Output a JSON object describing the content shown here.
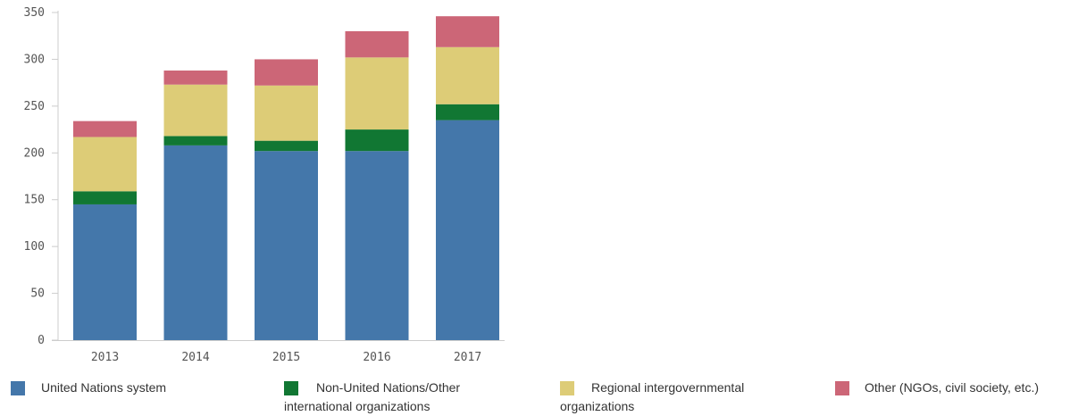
{
  "chart_data": {
    "type": "bar",
    "stacked": true,
    "title": "",
    "xlabel": "",
    "ylabel": "",
    "categories": [
      "2013",
      "2014",
      "2015",
      "2016",
      "2017"
    ],
    "ylim": [
      0,
      350
    ],
    "yticks": [
      "0",
      "50",
      "100",
      "150",
      "200",
      "250",
      "300",
      "350"
    ],
    "grid": false,
    "legend_position": "bottom",
    "series": [
      {
        "name": "United Nations system",
        "color": "#4477aa",
        "values": [
          145,
          208,
          202,
          202,
          235
        ]
      },
      {
        "name": "Non-United Nations/Other international organizations",
        "color": "#117733",
        "values": [
          14,
          10,
          11,
          23,
          17
        ]
      },
      {
        "name": "Regional intergovernmental organizations",
        "color": "#ddcc77",
        "values": [
          58,
          55,
          59,
          77,
          61
        ]
      },
      {
        "name": "Other (NGOs, civil society, etc.)",
        "color": "#cc6677",
        "values": [
          17,
          15,
          28,
          28,
          33
        ]
      }
    ]
  },
  "legend": {
    "items": [
      {
        "line1": "United Nations system",
        "line2": ""
      },
      {
        "line1": "Non-United Nations/Other",
        "line2": "international organizations"
      },
      {
        "line1": "Regional intergovernmental",
        "line2": "organizations"
      },
      {
        "line1": "Other (NGOs, civil society, etc.)",
        "line2": ""
      }
    ]
  }
}
